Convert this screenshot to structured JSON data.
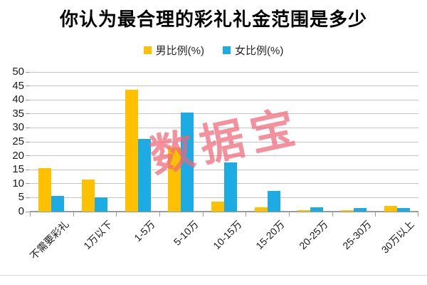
{
  "chart_data": {
    "type": "bar",
    "title": "你认为最合理的彩礼礼金范围是多少",
    "categories": [
      "不需要彩礼",
      "1万以下",
      "1-5万",
      "5-10万",
      "10-15万",
      "15-20万",
      "20-25万",
      "25-30万",
      "30万以上"
    ],
    "series": [
      {
        "key": "male",
        "name": "男比例(%)",
        "color": "#FFC000",
        "values": [
          15.5,
          11.5,
          43.5,
          23,
          3.5,
          1.5,
          0.5,
          0.5,
          2
        ]
      },
      {
        "key": "female",
        "name": "女比例(%)",
        "color": "#1CABE2",
        "values": [
          5.5,
          5,
          26,
          35.5,
          17.5,
          7.5,
          1.5,
          1.2,
          1.3
        ]
      }
    ],
    "xlabel": "",
    "ylabel": "",
    "ylim": [
      0,
      50
    ],
    "y_ticks": [
      0,
      5,
      10,
      15,
      20,
      25,
      30,
      35,
      40,
      45,
      50
    ],
    "grid": "horizontal",
    "legend_position": "top",
    "watermark": "数据宝"
  }
}
